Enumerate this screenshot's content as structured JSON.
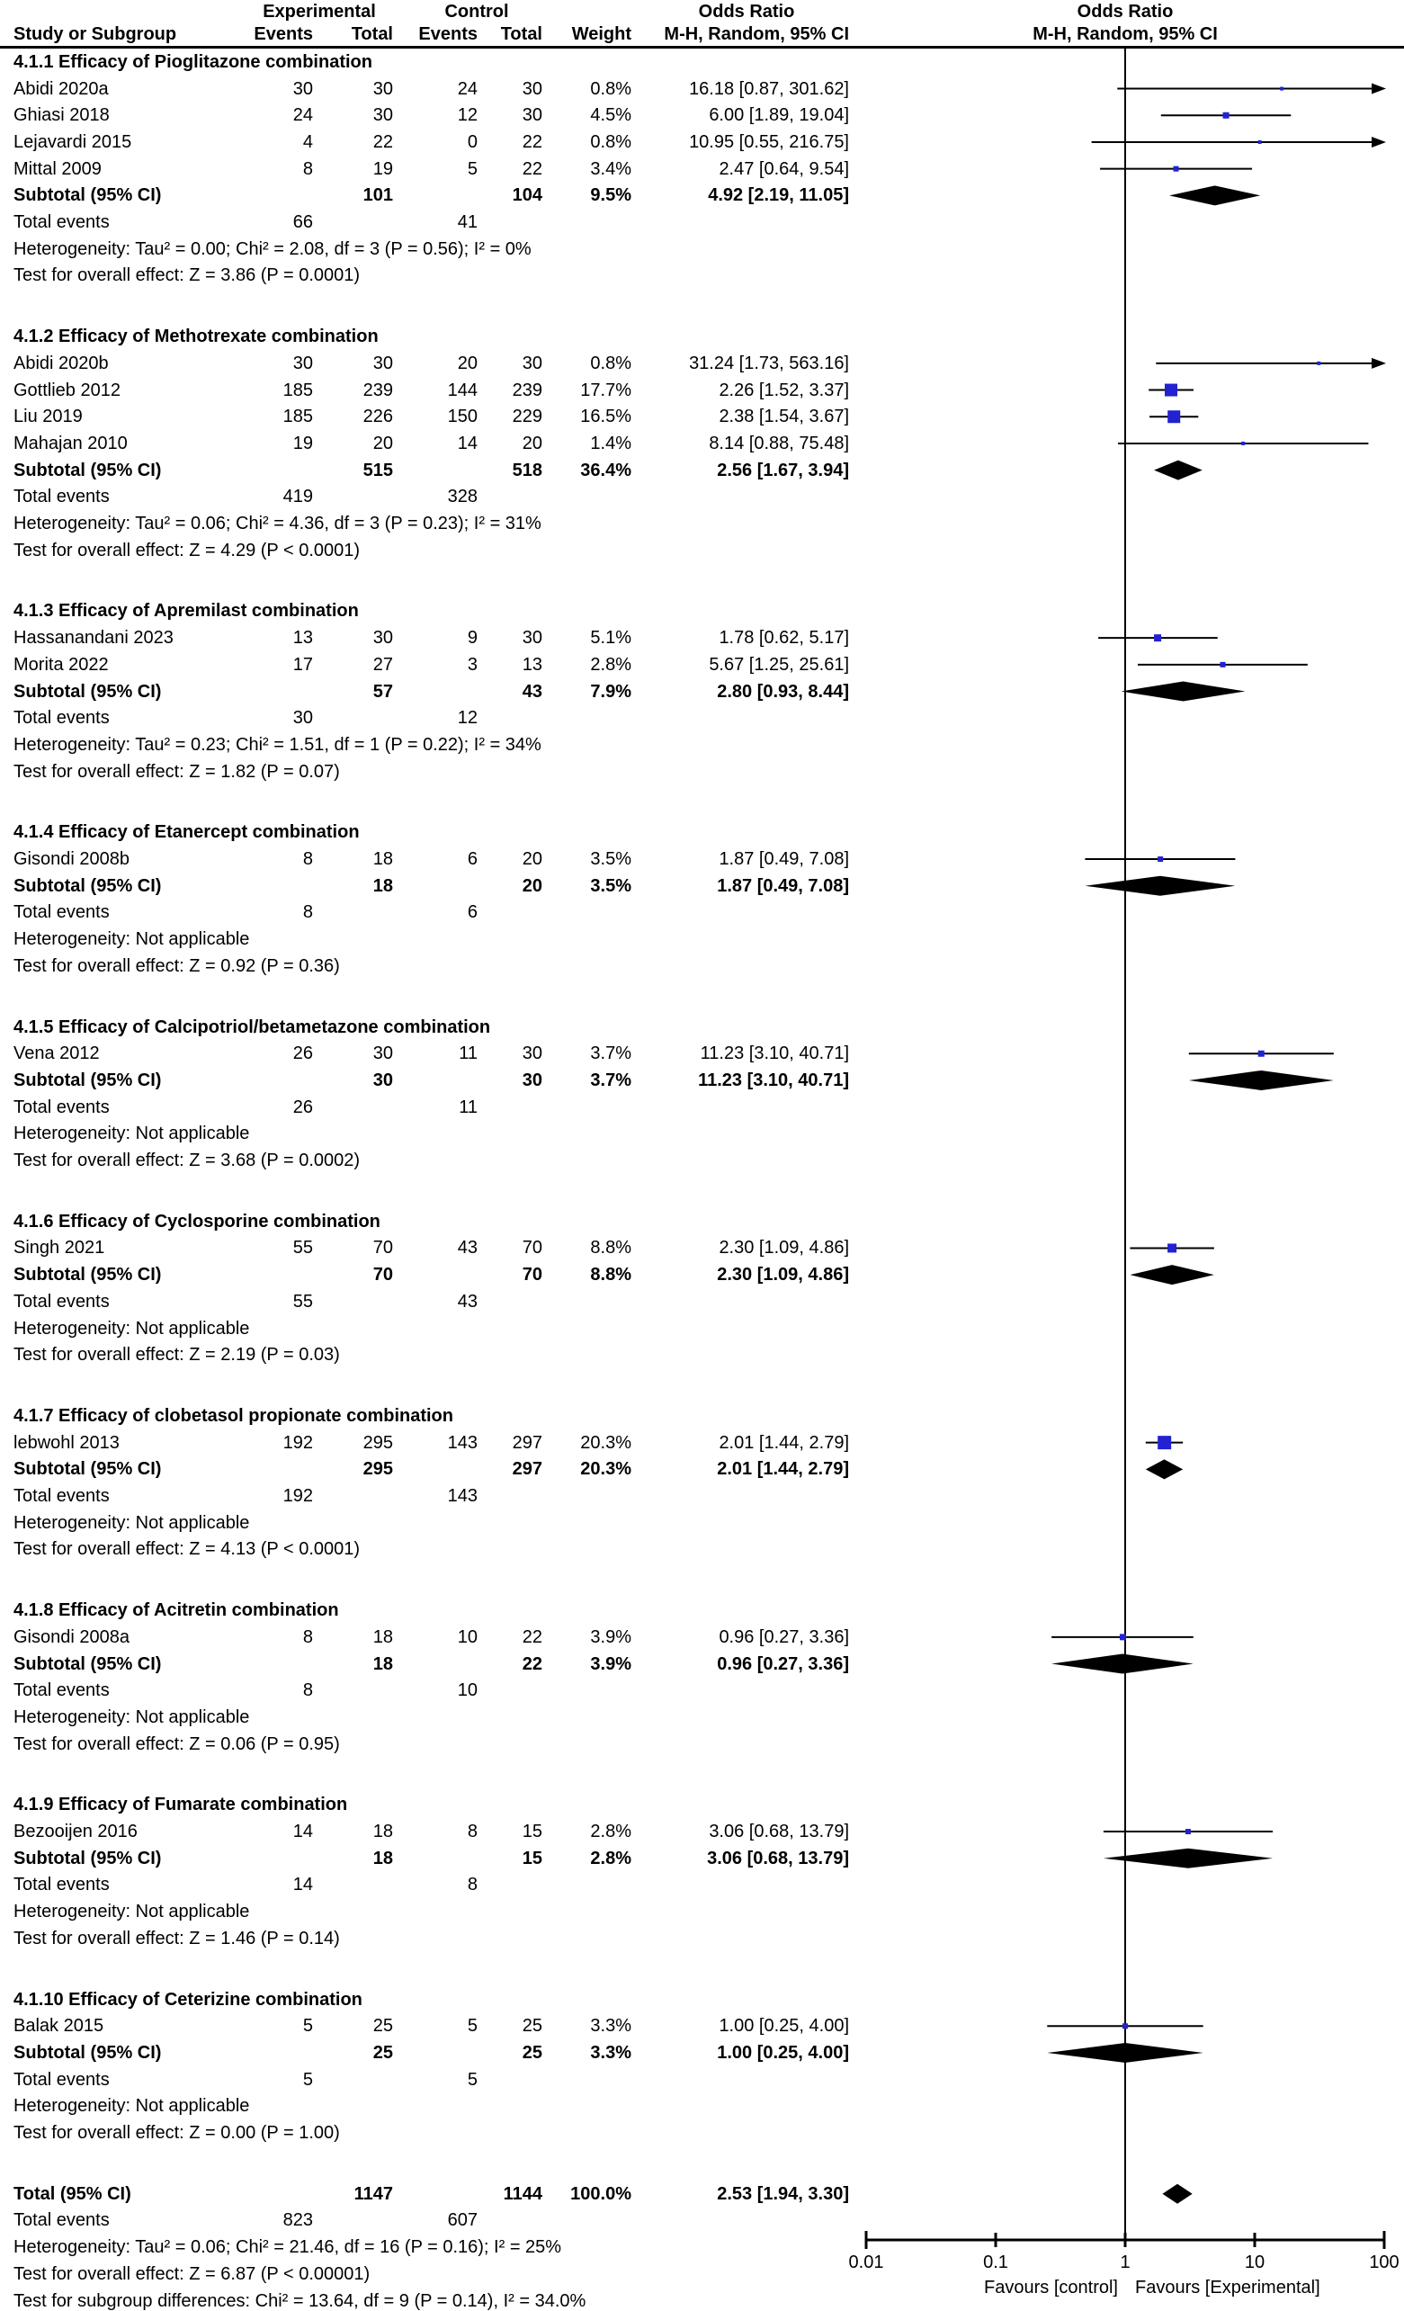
{
  "header": {
    "experimental": "Experimental",
    "control": "Control",
    "odds_ratio_text": "Odds Ratio",
    "odds_ratio_plot": "Odds Ratio",
    "study_col": "Study or Subgroup",
    "events_exp": "Events",
    "total_exp": "Total",
    "events_ctl": "Events",
    "total_ctl": "Total",
    "weight": "Weight",
    "mh_text": "M-H, Random, 95% CI",
    "mh_plot": "M-H, Random, 95% CI"
  },
  "labels": {
    "subtotal": "Subtotal (95% CI)",
    "total_events": "Total events",
    "grand_total": "Total (95% CI)"
  },
  "colors": {
    "marker_blue": "#2222d2",
    "black": "#000000"
  },
  "chart_data": {
    "type": "forest",
    "effect_measure": "Odds Ratio, M-H, Random, 95% CI",
    "x_scale": "log10",
    "x_ticks": [
      "0.01",
      "0.1",
      "1",
      "10",
      "100"
    ],
    "x_tick_values": [
      0.01,
      0.1,
      1,
      10,
      100
    ],
    "favours_left": "Favours [control]",
    "favours_right": "Favours [Experimental]",
    "sections": [
      {
        "title": "4.1.1 Efficacy of Pioglitazone combination",
        "studies": [
          {
            "name": "Abidi 2020a",
            "ee": "30",
            "et": "30",
            "ce": "24",
            "ct": "30",
            "weight": "0.8%",
            "or_text": "16.18 [0.87, 301.62]",
            "or": 16.18,
            "lo": 0.87,
            "hi": 301.62
          },
          {
            "name": "Ghiasi 2018",
            "ee": "24",
            "et": "30",
            "ce": "12",
            "ct": "30",
            "weight": "4.5%",
            "or_text": "6.00 [1.89, 19.04]",
            "or": 6.0,
            "lo": 1.89,
            "hi": 19.04
          },
          {
            "name": "Lejavardi 2015",
            "ee": "4",
            "et": "22",
            "ce": "0",
            "ct": "22",
            "weight": "0.8%",
            "or_text": "10.95 [0.55, 216.75]",
            "or": 10.95,
            "lo": 0.55,
            "hi": 216.75
          },
          {
            "name": "Mittal 2009",
            "ee": "8",
            "et": "19",
            "ce": "5",
            "ct": "22",
            "weight": "3.4%",
            "or_text": "2.47 [0.64, 9.54]",
            "or": 2.47,
            "lo": 0.64,
            "hi": 9.54
          }
        ],
        "subtotal": {
          "et": "101",
          "ct": "104",
          "weight": "9.5%",
          "or_text": "4.92 [2.19, 11.05]",
          "or": 4.92,
          "lo": 2.19,
          "hi": 11.05
        },
        "total_events": {
          "exp": "66",
          "ctl": "41"
        },
        "heterogeneity": "Heterogeneity: Tau² = 0.00; Chi² = 2.08, df = 3 (P = 0.56); I² = 0%",
        "overall_effect": "Test for overall effect: Z = 3.86 (P = 0.0001)"
      },
      {
        "title": "4.1.2 Efficacy of Methotrexate combination",
        "studies": [
          {
            "name": "Abidi 2020b",
            "ee": "30",
            "et": "30",
            "ce": "20",
            "ct": "30",
            "weight": "0.8%",
            "or_text": "31.24 [1.73, 563.16]",
            "or": 31.24,
            "lo": 1.73,
            "hi": 563.16
          },
          {
            "name": "Gottlieb 2012",
            "ee": "185",
            "et": "239",
            "ce": "144",
            "ct": "239",
            "weight": "17.7%",
            "or_text": "2.26 [1.52, 3.37]",
            "or": 2.26,
            "lo": 1.52,
            "hi": 3.37
          },
          {
            "name": "Liu 2019",
            "ee": "185",
            "et": "226",
            "ce": "150",
            "ct": "229",
            "weight": "16.5%",
            "or_text": "2.38 [1.54, 3.67]",
            "or": 2.38,
            "lo": 1.54,
            "hi": 3.67
          },
          {
            "name": "Mahajan 2010",
            "ee": "19",
            "et": "20",
            "ce": "14",
            "ct": "20",
            "weight": "1.4%",
            "or_text": "8.14 [0.88, 75.48]",
            "or": 8.14,
            "lo": 0.88,
            "hi": 75.48
          }
        ],
        "subtotal": {
          "et": "515",
          "ct": "518",
          "weight": "36.4%",
          "or_text": "2.56 [1.67, 3.94]",
          "or": 2.56,
          "lo": 1.67,
          "hi": 3.94
        },
        "total_events": {
          "exp": "419",
          "ctl": "328"
        },
        "heterogeneity": "Heterogeneity: Tau² = 0.06; Chi² = 4.36, df = 3 (P = 0.23); I² = 31%",
        "overall_effect": "Test for overall effect: Z = 4.29 (P < 0.0001)"
      },
      {
        "title": "4.1.3 Efficacy of Apremilast combination",
        "studies": [
          {
            "name": "Hassanandani 2023",
            "ee": "13",
            "et": "30",
            "ce": "9",
            "ct": "30",
            "weight": "5.1%",
            "or_text": "1.78 [0.62, 5.17]",
            "or": 1.78,
            "lo": 0.62,
            "hi": 5.17
          },
          {
            "name": "Morita 2022",
            "ee": "17",
            "et": "27",
            "ce": "3",
            "ct": "13",
            "weight": "2.8%",
            "or_text": "5.67 [1.25, 25.61]",
            "or": 5.67,
            "lo": 1.25,
            "hi": 25.61
          }
        ],
        "subtotal": {
          "et": "57",
          "ct": "43",
          "weight": "7.9%",
          "or_text": "2.80 [0.93, 8.44]",
          "or": 2.8,
          "lo": 0.93,
          "hi": 8.44
        },
        "total_events": {
          "exp": "30",
          "ctl": "12"
        },
        "heterogeneity": "Heterogeneity: Tau² = 0.23; Chi² = 1.51, df = 1 (P = 0.22); I² = 34%",
        "overall_effect": "Test for overall effect: Z = 1.82 (P = 0.07)"
      },
      {
        "title": "4.1.4 Efficacy of Etanercept combination",
        "studies": [
          {
            "name": "Gisondi 2008b",
            "ee": "8",
            "et": "18",
            "ce": "6",
            "ct": "20",
            "weight": "3.5%",
            "or_text": "1.87 [0.49, 7.08]",
            "or": 1.87,
            "lo": 0.49,
            "hi": 7.08
          }
        ],
        "subtotal": {
          "et": "18",
          "ct": "20",
          "weight": "3.5%",
          "or_text": "1.87 [0.49, 7.08]",
          "or": 1.87,
          "lo": 0.49,
          "hi": 7.08
        },
        "total_events": {
          "exp": "8",
          "ctl": "6"
        },
        "heterogeneity": "Heterogeneity: Not applicable",
        "overall_effect": "Test for overall effect: Z = 0.92 (P = 0.36)"
      },
      {
        "title": "4.1.5 Efficacy of Calcipotriol/betametazone combination",
        "studies": [
          {
            "name": "Vena 2012",
            "ee": "26",
            "et": "30",
            "ce": "11",
            "ct": "30",
            "weight": "3.7%",
            "or_text": "11.23 [3.10, 40.71]",
            "or": 11.23,
            "lo": 3.1,
            "hi": 40.71
          }
        ],
        "subtotal": {
          "et": "30",
          "ct": "30",
          "weight": "3.7%",
          "or_text": "11.23 [3.10, 40.71]",
          "or": 11.23,
          "lo": 3.1,
          "hi": 40.71
        },
        "total_events": {
          "exp": "26",
          "ctl": "11"
        },
        "heterogeneity": "Heterogeneity: Not applicable",
        "overall_effect": "Test for overall effect: Z = 3.68 (P = 0.0002)"
      },
      {
        "title": "4.1.6 Efficacy of Cyclosporine combination",
        "studies": [
          {
            "name": "Singh 2021",
            "ee": "55",
            "et": "70",
            "ce": "43",
            "ct": "70",
            "weight": "8.8%",
            "or_text": "2.30 [1.09, 4.86]",
            "or": 2.3,
            "lo": 1.09,
            "hi": 4.86
          }
        ],
        "subtotal": {
          "et": "70",
          "ct": "70",
          "weight": "8.8%",
          "or_text": "2.30 [1.09, 4.86]",
          "or": 2.3,
          "lo": 1.09,
          "hi": 4.86
        },
        "total_events": {
          "exp": "55",
          "ctl": "43"
        },
        "heterogeneity": "Heterogeneity: Not applicable",
        "overall_effect": "Test for overall effect: Z = 2.19 (P = 0.03)"
      },
      {
        "title": "4.1.7 Efficacy of clobetasol propionate combination",
        "studies": [
          {
            "name": "lebwohl 2013",
            "ee": "192",
            "et": "295",
            "ce": "143",
            "ct": "297",
            "weight": "20.3%",
            "or_text": "2.01 [1.44, 2.79]",
            "or": 2.01,
            "lo": 1.44,
            "hi": 2.79
          }
        ],
        "subtotal": {
          "et": "295",
          "ct": "297",
          "weight": "20.3%",
          "or_text": "2.01 [1.44, 2.79]",
          "or": 2.01,
          "lo": 1.44,
          "hi": 2.79
        },
        "total_events": {
          "exp": "192",
          "ctl": "143"
        },
        "heterogeneity": "Heterogeneity: Not applicable",
        "overall_effect": "Test for overall effect: Z = 4.13 (P < 0.0001)"
      },
      {
        "title": "4.1.8 Efficacy of Acitretin combination",
        "studies": [
          {
            "name": "Gisondi 2008a",
            "ee": "8",
            "et": "18",
            "ce": "10",
            "ct": "22",
            "weight": "3.9%",
            "or_text": "0.96 [0.27, 3.36]",
            "or": 0.96,
            "lo": 0.27,
            "hi": 3.36
          }
        ],
        "subtotal": {
          "et": "18",
          "ct": "22",
          "weight": "3.9%",
          "or_text": "0.96 [0.27, 3.36]",
          "or": 0.96,
          "lo": 0.27,
          "hi": 3.36
        },
        "total_events": {
          "exp": "8",
          "ctl": "10"
        },
        "heterogeneity": "Heterogeneity: Not applicable",
        "overall_effect": "Test for overall effect: Z = 0.06 (P = 0.95)"
      },
      {
        "title": "4.1.9 Efficacy of Fumarate combination",
        "studies": [
          {
            "name": "Bezooijen 2016",
            "ee": "14",
            "et": "18",
            "ce": "8",
            "ct": "15",
            "weight": "2.8%",
            "or_text": "3.06 [0.68, 13.79]",
            "or": 3.06,
            "lo": 0.68,
            "hi": 13.79
          }
        ],
        "subtotal": {
          "et": "18",
          "ct": "15",
          "weight": "2.8%",
          "or_text": "3.06 [0.68, 13.79]",
          "or": 3.06,
          "lo": 0.68,
          "hi": 13.79
        },
        "total_events": {
          "exp": "14",
          "ctl": "8"
        },
        "heterogeneity": "Heterogeneity: Not applicable",
        "overall_effect": "Test for overall effect: Z = 1.46 (P = 0.14)"
      },
      {
        "title": "4.1.10 Efficacy of Ceterizine combination",
        "studies": [
          {
            "name": "Balak 2015",
            "ee": "5",
            "et": "25",
            "ce": "5",
            "ct": "25",
            "weight": "3.3%",
            "or_text": "1.00 [0.25, 4.00]",
            "or": 1.0,
            "lo": 0.25,
            "hi": 4.0
          }
        ],
        "subtotal": {
          "et": "25",
          "ct": "25",
          "weight": "3.3%",
          "or_text": "1.00 [0.25, 4.00]",
          "or": 1.0,
          "lo": 0.25,
          "hi": 4.0
        },
        "total_events": {
          "exp": "5",
          "ctl": "5"
        },
        "heterogeneity": "Heterogeneity: Not applicable",
        "overall_effect": "Test for overall effect: Z = 0.00 (P = 1.00)"
      }
    ],
    "total": {
      "et": "1147",
      "ct": "1144",
      "weight": "100.0%",
      "or_text": "2.53 [1.94, 3.30]",
      "or": 2.53,
      "lo": 1.94,
      "hi": 3.3,
      "total_events": {
        "exp": "823",
        "ctl": "607"
      },
      "heterogeneity": "Heterogeneity: Tau² = 0.06; Chi² = 21.46, df = 16 (P = 0.16); I² = 25%",
      "overall_effect": "Test for overall effect: Z = 6.87 (P < 0.00001)",
      "subgroup_diff": "Test for subgroup differences: Chi² = 13.64, df = 9 (P = 0.14), I² = 34.0%"
    }
  }
}
